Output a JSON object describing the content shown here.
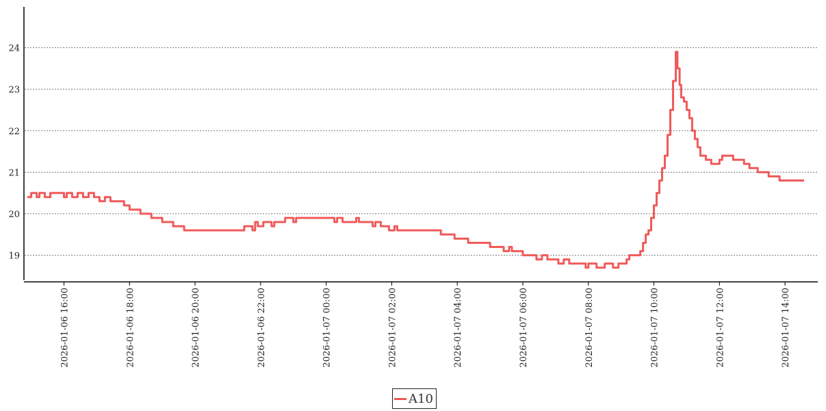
{
  "chart_data": {
    "type": "line",
    "title": "",
    "xlabel": "",
    "ylabel": "",
    "x_range": [
      "2026-01-06 14:48",
      "2026-01-07 15:00"
    ],
    "ylim": [
      18.4,
      24.95
    ],
    "y_ticks": [
      19,
      20,
      21,
      22,
      23,
      24
    ],
    "x_ticks": [
      "2026-01-06 16:00",
      "2026-01-06 18:00",
      "2026-01-06 20:00",
      "2026-01-06 22:00",
      "2026-01-07 00:00",
      "2026-01-07 02:00",
      "2026-01-07 04:00",
      "2026-01-07 06:00",
      "2026-01-07 08:00",
      "2026-01-07 10:00",
      "2026-01-07 12:00",
      "2026-01-07 14:00"
    ],
    "grid": "horizontal dotted",
    "legend_position": "bottom-center",
    "series": [
      {
        "name": "A10",
        "color": "#f05a5a",
        "points": [
          [
            "2026-01-06 14:53",
            20.4
          ],
          [
            "2026-01-06 15:00",
            20.5
          ],
          [
            "2026-01-06 15:10",
            20.4
          ],
          [
            "2026-01-06 15:15",
            20.5
          ],
          [
            "2026-01-06 15:25",
            20.4
          ],
          [
            "2026-01-06 15:35",
            20.5
          ],
          [
            "2026-01-06 16:00",
            20.4
          ],
          [
            "2026-01-06 16:05",
            20.5
          ],
          [
            "2026-01-06 16:15",
            20.4
          ],
          [
            "2026-01-06 16:25",
            20.5
          ],
          [
            "2026-01-06 16:35",
            20.4
          ],
          [
            "2026-01-06 16:45",
            20.5
          ],
          [
            "2026-01-06 16:55",
            20.4
          ],
          [
            "2026-01-06 17:05",
            20.3
          ],
          [
            "2026-01-06 17:15",
            20.4
          ],
          [
            "2026-01-06 17:25",
            20.3
          ],
          [
            "2026-01-06 17:50",
            20.2
          ],
          [
            "2026-01-06 18:00",
            20.1
          ],
          [
            "2026-01-06 18:20",
            20.0
          ],
          [
            "2026-01-06 18:40",
            19.9
          ],
          [
            "2026-01-06 19:00",
            19.8
          ],
          [
            "2026-01-06 19:20",
            19.7
          ],
          [
            "2026-01-06 19:40",
            19.6
          ],
          [
            "2026-01-06 21:30",
            19.7
          ],
          [
            "2026-01-06 21:45",
            19.6
          ],
          [
            "2026-01-06 21:50",
            19.8
          ],
          [
            "2026-01-06 21:55",
            19.7
          ],
          [
            "2026-01-06 22:05",
            19.8
          ],
          [
            "2026-01-06 22:20",
            19.7
          ],
          [
            "2026-01-06 22:25",
            19.8
          ],
          [
            "2026-01-06 22:45",
            19.9
          ],
          [
            "2026-01-06 23:00",
            19.8
          ],
          [
            "2026-01-06 23:05",
            19.9
          ],
          [
            "2026-01-07 00:15",
            19.8
          ],
          [
            "2026-01-07 00:20",
            19.9
          ],
          [
            "2026-01-07 00:30",
            19.8
          ],
          [
            "2026-01-07 00:55",
            19.9
          ],
          [
            "2026-01-07 01:00",
            19.8
          ],
          [
            "2026-01-07 01:25",
            19.7
          ],
          [
            "2026-01-07 01:30",
            19.8
          ],
          [
            "2026-01-07 01:40",
            19.7
          ],
          [
            "2026-01-07 01:55",
            19.6
          ],
          [
            "2026-01-07 02:05",
            19.7
          ],
          [
            "2026-01-07 02:10",
            19.6
          ],
          [
            "2026-01-07 03:30",
            19.5
          ],
          [
            "2026-01-07 03:55",
            19.4
          ],
          [
            "2026-01-07 04:20",
            19.3
          ],
          [
            "2026-01-07 05:00",
            19.2
          ],
          [
            "2026-01-07 05:25",
            19.1
          ],
          [
            "2026-01-07 05:35",
            19.2
          ],
          [
            "2026-01-07 05:40",
            19.1
          ],
          [
            "2026-01-07 06:00",
            19.0
          ],
          [
            "2026-01-07 06:25",
            18.9
          ],
          [
            "2026-01-07 06:35",
            19.0
          ],
          [
            "2026-01-07 06:45",
            18.9
          ],
          [
            "2026-01-07 07:05",
            18.8
          ],
          [
            "2026-01-07 07:15",
            18.9
          ],
          [
            "2026-01-07 07:25",
            18.8
          ],
          [
            "2026-01-07 07:55",
            18.7
          ],
          [
            "2026-01-07 08:00",
            18.8
          ],
          [
            "2026-01-07 08:15",
            18.7
          ],
          [
            "2026-01-07 08:30",
            18.8
          ],
          [
            "2026-01-07 08:45",
            18.7
          ],
          [
            "2026-01-07 08:55",
            18.8
          ],
          [
            "2026-01-07 09:10",
            18.9
          ],
          [
            "2026-01-07 09:15",
            19.0
          ],
          [
            "2026-01-07 09:35",
            19.1
          ],
          [
            "2026-01-07 09:40",
            19.3
          ],
          [
            "2026-01-07 09:45",
            19.5
          ],
          [
            "2026-01-07 09:50",
            19.6
          ],
          [
            "2026-01-07 09:55",
            19.9
          ],
          [
            "2026-01-07 10:00",
            20.2
          ],
          [
            "2026-01-07 10:05",
            20.5
          ],
          [
            "2026-01-07 10:10",
            20.8
          ],
          [
            "2026-01-07 10:15",
            21.1
          ],
          [
            "2026-01-07 10:20",
            21.4
          ],
          [
            "2026-01-07 10:25",
            21.9
          ],
          [
            "2026-01-07 10:30",
            22.5
          ],
          [
            "2026-01-07 10:35",
            23.2
          ],
          [
            "2026-01-07 10:40",
            23.9
          ],
          [
            "2026-01-07 10:43",
            23.5
          ],
          [
            "2026-01-07 10:47",
            23.1
          ],
          [
            "2026-01-07 10:50",
            22.8
          ],
          [
            "2026-01-07 10:55",
            22.7
          ],
          [
            "2026-01-07 11:00",
            22.5
          ],
          [
            "2026-01-07 11:05",
            22.3
          ],
          [
            "2026-01-07 11:10",
            22.0
          ],
          [
            "2026-01-07 11:15",
            21.8
          ],
          [
            "2026-01-07 11:20",
            21.6
          ],
          [
            "2026-01-07 11:25",
            21.4
          ],
          [
            "2026-01-07 11:35",
            21.3
          ],
          [
            "2026-01-07 11:45",
            21.2
          ],
          [
            "2026-01-07 12:00",
            21.3
          ],
          [
            "2026-01-07 12:05",
            21.4
          ],
          [
            "2026-01-07 12:25",
            21.3
          ],
          [
            "2026-01-07 12:45",
            21.2
          ],
          [
            "2026-01-07 12:55",
            21.1
          ],
          [
            "2026-01-07 13:10",
            21.0
          ],
          [
            "2026-01-07 13:30",
            20.9
          ],
          [
            "2026-01-07 13:50",
            20.8
          ],
          [
            "2026-01-07 14:35",
            20.8
          ]
        ]
      }
    ]
  }
}
